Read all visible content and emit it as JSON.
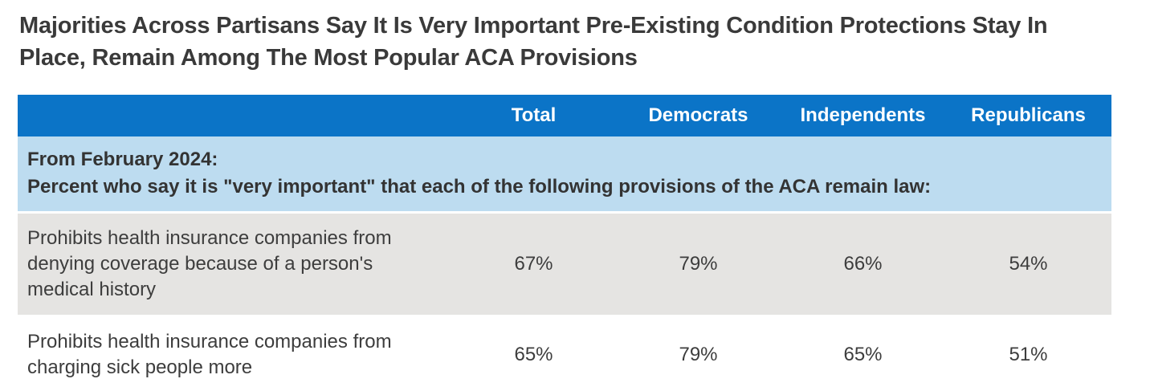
{
  "page": {
    "title": "Majorities Across Partisans Say It Is Very Important Pre-Existing Condition Protections Stay In Place, Remain Among The Most Popular ACA Provisions"
  },
  "table": {
    "column_headers": {
      "total": "Total",
      "democrats": "Democrats",
      "independents": "Independents",
      "republicans": "Republicans"
    },
    "subheader": {
      "line1": "From February 2024:",
      "line2": "Percent who say it is \"very important\" that each of the following provisions of the ACA remain law:"
    },
    "rows": [
      {
        "label": "Prohibits health insurance companies from denying coverage because of a person's medical history",
        "values": [
          "67%",
          "79%",
          "66%",
          "54%"
        ]
      },
      {
        "label": "Prohibits health insurance companies from charging sick people more",
        "values": [
          "65%",
          "79%",
          "65%",
          "51%"
        ]
      }
    ]
  },
  "colors": {
    "header_blue": "#0b74c7",
    "subheader_blue": "#bddcf0",
    "row_gray": "#e5e4e2",
    "text_dark": "#3a3a3a",
    "header_text": "#ffffff"
  },
  "chart_data": {
    "type": "table",
    "title": "Majorities Across Partisans Say It Is Very Important Pre-Existing Condition Protections Stay In Place, Remain Among The Most Popular ACA Provisions",
    "note_lines": [
      "From February 2024:",
      "Percent who say it is \"very important\" that each of the following provisions of the ACA remain law:"
    ],
    "columns": [
      "Total",
      "Democrats",
      "Independents",
      "Republicans"
    ],
    "rows": [
      {
        "label": "Prohibits health insurance companies from denying coverage because of a person's medical history",
        "values_percent": [
          67,
          79,
          66,
          54
        ]
      },
      {
        "label": "Prohibits health insurance companies from charging sick people more",
        "values_percent": [
          65,
          79,
          65,
          51
        ]
      }
    ]
  }
}
